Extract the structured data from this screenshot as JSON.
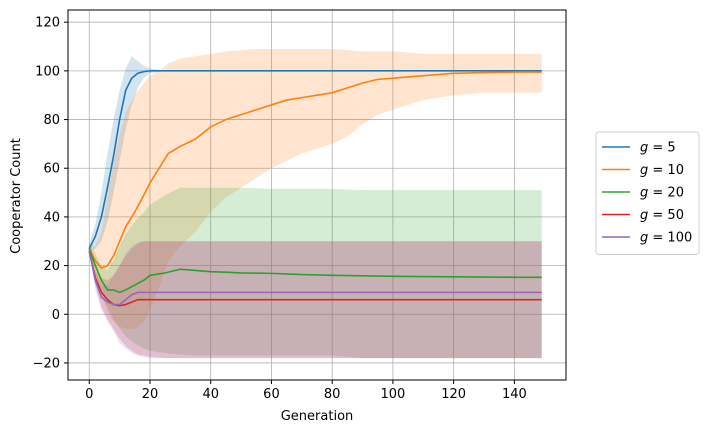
{
  "chart_data": {
    "type": "line",
    "title": "",
    "xlabel": "Generation",
    "ylabel": "Cooperator Count",
    "xlim": [
      -7,
      157
    ],
    "ylim": [
      -27,
      125
    ],
    "xticks": [
      0,
      20,
      40,
      60,
      80,
      100,
      120,
      140
    ],
    "yticks": [
      -20,
      0,
      20,
      40,
      60,
      80,
      100,
      120
    ],
    "grid": true,
    "legend_position": "outside-right",
    "series": [
      {
        "name": "g = 5",
        "g_value": "5",
        "color": "#1f77b4",
        "x": [
          0,
          2,
          4,
          6,
          8,
          10,
          12,
          14,
          16,
          18,
          20,
          25,
          149
        ],
        "values": [
          27,
          32,
          40,
          52,
          65,
          80,
          92,
          97,
          99,
          99.7,
          100,
          100,
          100
        ],
        "upper": [
          29,
          37,
          50,
          66,
          80,
          92,
          101,
          106,
          104,
          102,
          101,
          100,
          100
        ],
        "lower": [
          25,
          27,
          30,
          38,
          50,
          63,
          76,
          86,
          93,
          97,
          99,
          100,
          100
        ]
      },
      {
        "name": "g = 10",
        "g_value": "10",
        "color": "#ff7f0e",
        "x": [
          0,
          2,
          4,
          6,
          8,
          10,
          12,
          15,
          18,
          20,
          23,
          26,
          30,
          35,
          40,
          45,
          50,
          55,
          60,
          65,
          70,
          75,
          80,
          85,
          90,
          95,
          100,
          105,
          110,
          115,
          120,
          130,
          140,
          149
        ],
        "values": [
          27,
          22,
          19,
          20,
          24,
          30,
          36,
          42,
          49,
          54,
          60,
          66,
          69,
          72,
          77,
          80,
          82,
          84,
          86,
          88,
          89,
          90,
          91,
          93,
          95,
          96.5,
          97,
          97.5,
          98,
          98.5,
          99,
          99.3,
          99.5,
          99.5
        ],
        "upper": [
          29,
          28,
          34,
          48,
          62,
          74,
          83,
          90,
          95,
          98,
          100,
          103,
          105,
          106,
          107,
          108,
          108.5,
          109,
          109,
          109,
          109,
          109,
          109,
          108.5,
          108,
          108,
          108,
          107.5,
          107,
          107,
          107,
          107,
          107,
          107
        ],
        "lower": [
          25,
          16,
          8,
          1,
          -3,
          -5,
          -6,
          -6,
          -3,
          2,
          11,
          22,
          28,
          34,
          42,
          48,
          52,
          56,
          60,
          63,
          66,
          68,
          70,
          73,
          78,
          82,
          84,
          86,
          88,
          89,
          90,
          91,
          91,
          91
        ]
      },
      {
        "name": "g = 20",
        "g_value": "20",
        "color": "#2ca02c",
        "x": [
          0,
          2,
          4,
          6,
          8,
          10,
          12,
          15,
          18,
          20,
          25,
          30,
          35,
          40,
          45,
          50,
          60,
          70,
          80,
          90,
          100,
          110,
          120,
          130,
          140,
          149
        ],
        "values": [
          27,
          20,
          14,
          10,
          10,
          9,
          10,
          12,
          14,
          16,
          17,
          18.5,
          18,
          17.5,
          17.3,
          17,
          16.8,
          16.3,
          16,
          15.8,
          15.6,
          15.5,
          15.4,
          15.3,
          15.2,
          15.2
        ],
        "upper": [
          29,
          25,
          20,
          18,
          22,
          28,
          33,
          38,
          42,
          45,
          49,
          52,
          52,
          52,
          52,
          52,
          51.5,
          51.5,
          51.5,
          51,
          51,
          51,
          51,
          51,
          51,
          51
        ],
        "lower": [
          25,
          15,
          8,
          3,
          -2,
          -6,
          -9,
          -12,
          -14,
          -15,
          -16,
          -16.5,
          -17,
          -17,
          -17,
          -17,
          -17,
          -17,
          -17,
          -18,
          -18,
          -18,
          -18,
          -18,
          -18,
          -18
        ]
      },
      {
        "name": "g = 50",
        "g_value": "50",
        "color": "#d62728",
        "x": [
          0,
          2,
          4,
          6,
          8,
          10,
          12,
          14,
          16,
          18,
          20,
          25,
          149
        ],
        "values": [
          26,
          15,
          9,
          6,
          4,
          3.5,
          4,
          5,
          6,
          6,
          6,
          6,
          6
        ],
        "upper": [
          27,
          18,
          15,
          14,
          16,
          20,
          24,
          27,
          29,
          30,
          30,
          30,
          30
        ],
        "lower": [
          25,
          12,
          3,
          -2,
          -6,
          -10,
          -13,
          -15,
          -16.5,
          -17,
          -17.5,
          -18,
          -18
        ]
      },
      {
        "name": "g = 100",
        "g_value": "100",
        "color": "#9467bd",
        "x": [
          0,
          2,
          4,
          6,
          8,
          10,
          12,
          14,
          16,
          18,
          20,
          25,
          149
        ],
        "values": [
          26,
          14,
          7,
          5,
          4,
          4,
          6,
          8,
          9,
          9,
          9,
          9,
          9
        ],
        "upper": [
          27,
          17,
          12,
          12,
          16,
          20,
          25,
          28,
          29.5,
          30,
          30,
          30,
          30
        ],
        "lower": [
          25,
          10,
          2,
          -3,
          -7,
          -12,
          -14,
          -16,
          -17,
          -17.5,
          -18,
          -18,
          -18
        ]
      }
    ]
  }
}
